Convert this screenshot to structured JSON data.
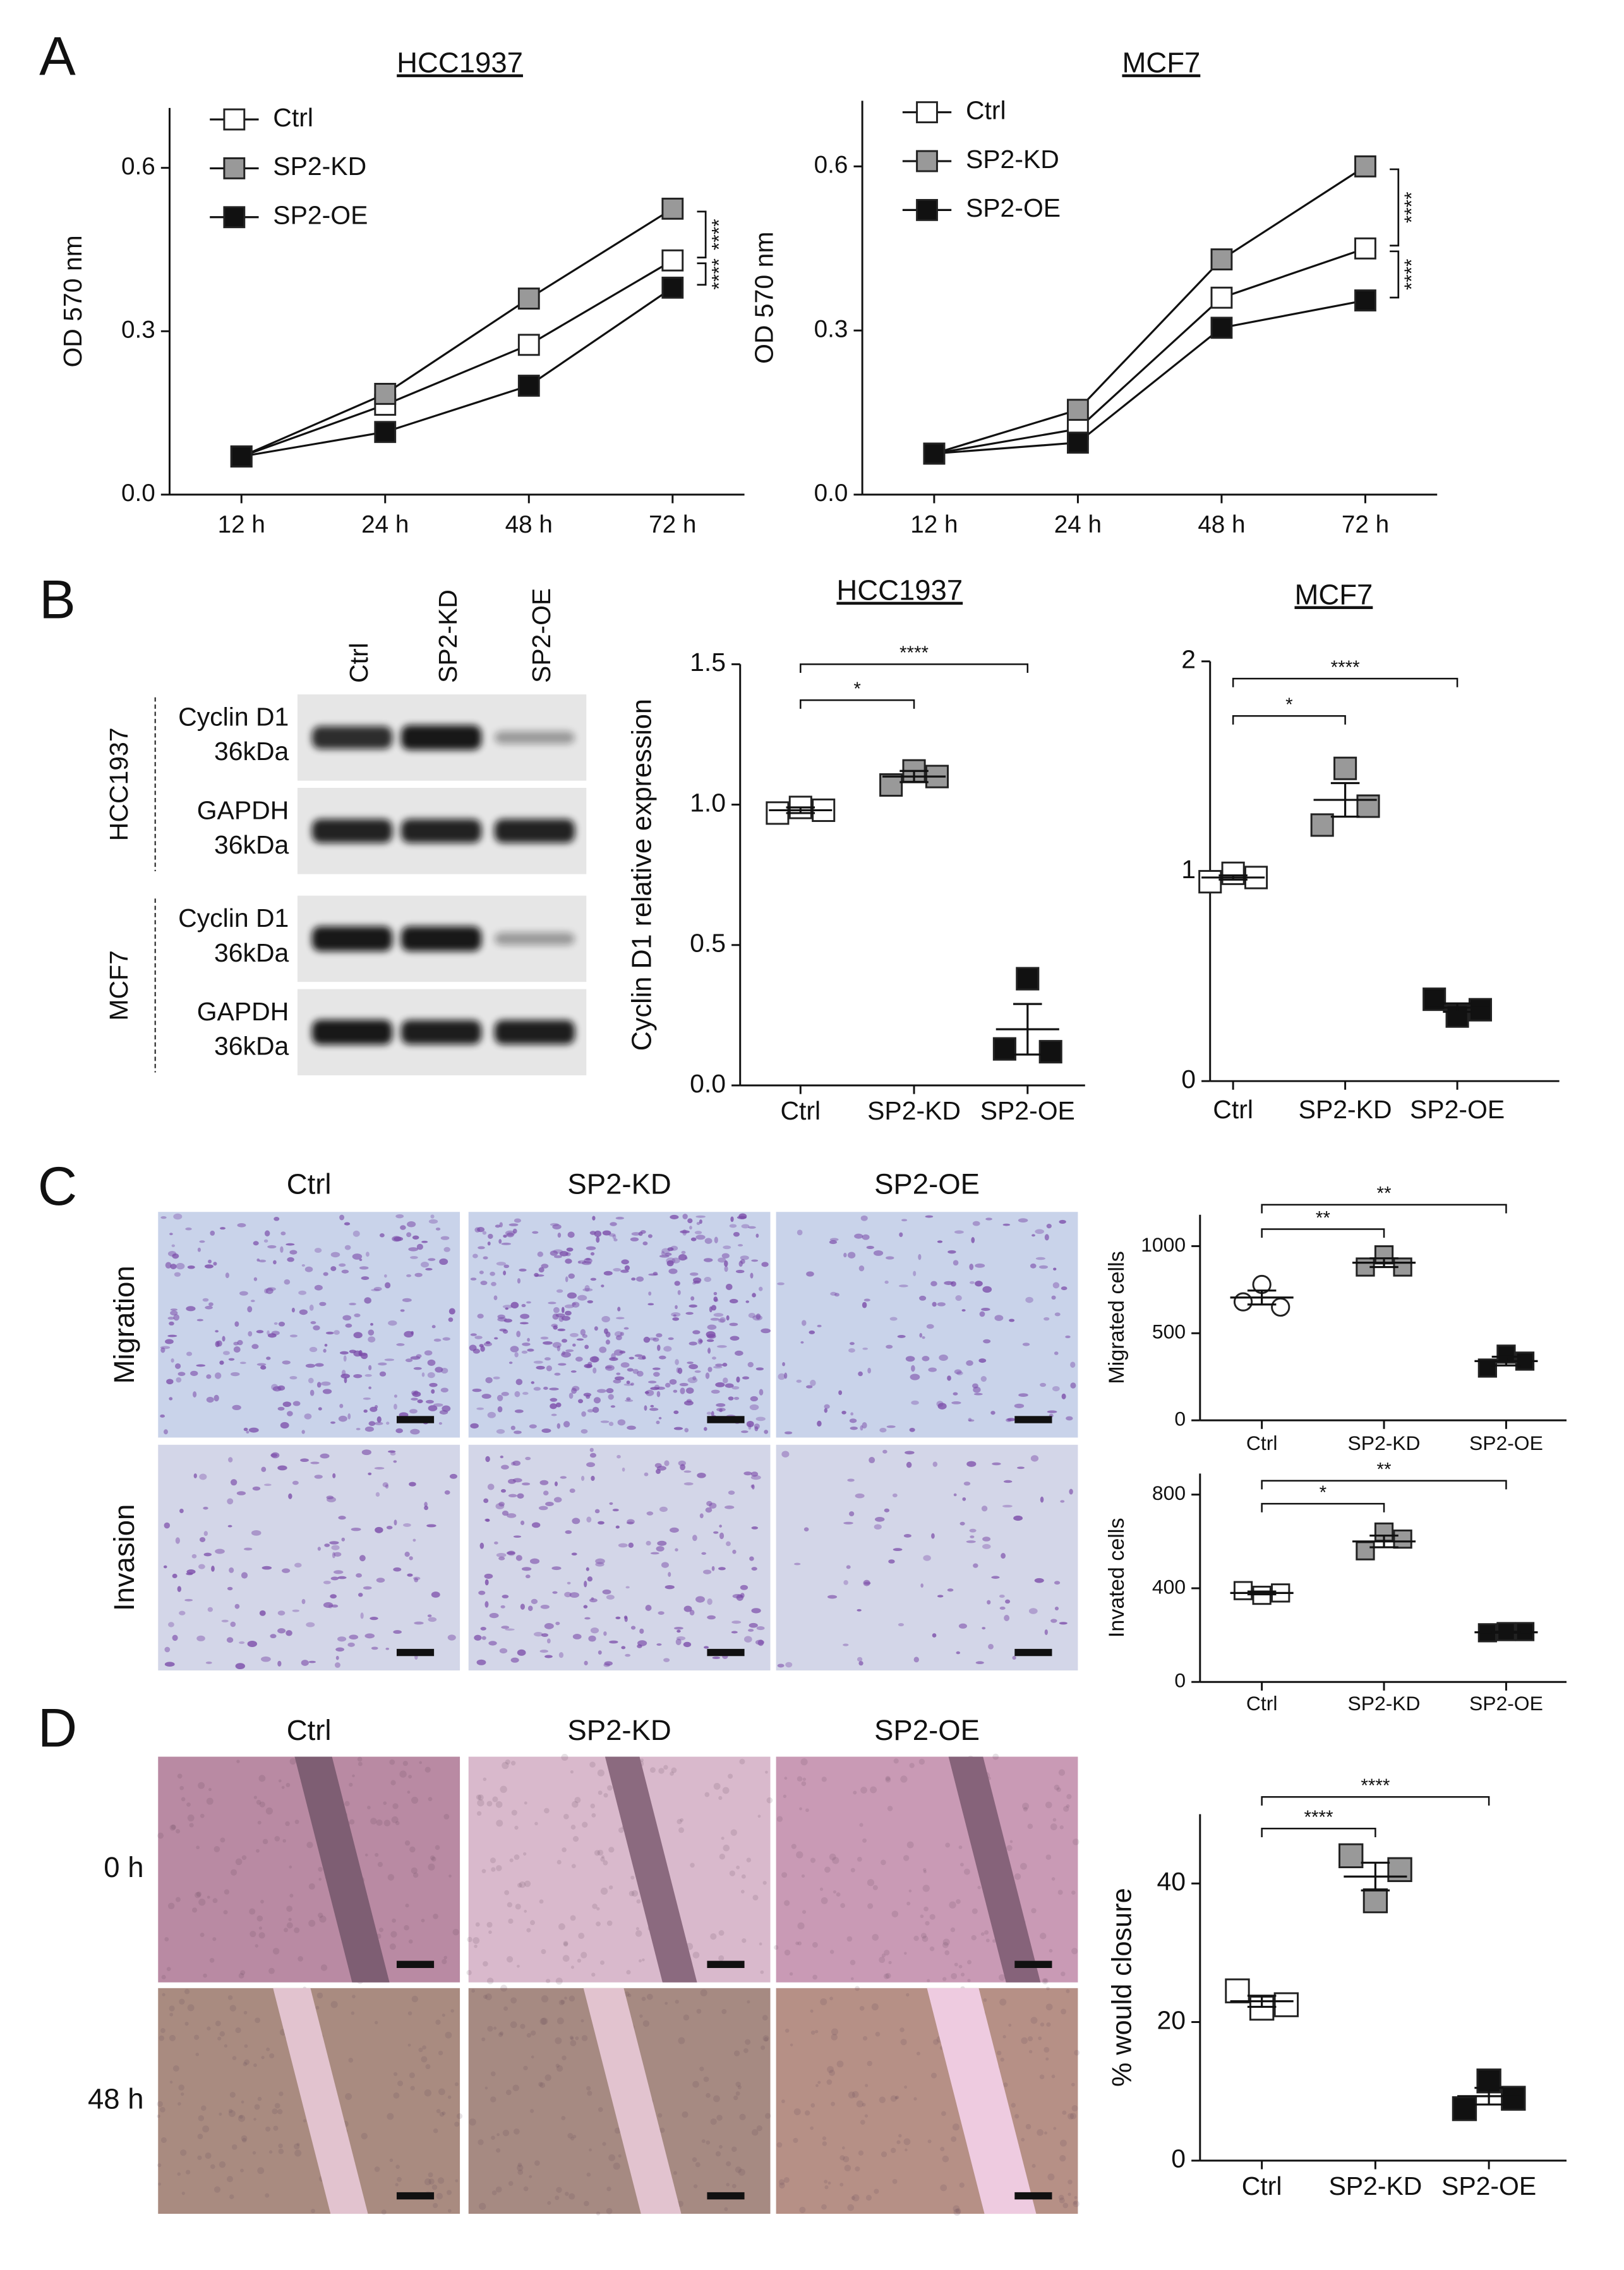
{
  "panel_labels": [
    "A",
    "B",
    "C",
    "D"
  ],
  "chart_data": [
    {
      "type": "line",
      "title": "HCC1937",
      "y_label": "OD 570 nm",
      "categories": [
        "12 h",
        "24 h",
        "48 h",
        "72 h"
      ],
      "series": [
        {
          "name": "Ctrl",
          "color": "#ffffff",
          "values": [
            0.07,
            0.165,
            0.275,
            0.43
          ]
        },
        {
          "name": "SP2-KD",
          "color": "#999999",
          "values": [
            0.07,
            0.185,
            0.36,
            0.525
          ]
        },
        {
          "name": "SP2-OE",
          "color": "#111111",
          "values": [
            0.07,
            0.115,
            0.2,
            0.38
          ]
        }
      ],
      "ylim": [
        0,
        0.71
      ],
      "yticks": [
        {
          "value": 0,
          "label": "0.0"
        },
        0.3,
        0.6
      ],
      "legend": "upper left",
      "annotations": [
        {
          "label": "****",
          "between": [
            1,
            0
          ]
        },
        {
          "label": "****",
          "between": [
            0,
            2
          ]
        }
      ]
    },
    {
      "type": "line",
      "title": "MCF7",
      "y_label": "OD 570 nm",
      "categories": [
        "12 h",
        "24 h",
        "48 h",
        "72 h"
      ],
      "series": [
        {
          "name": "Ctrl",
          "color": "#ffffff",
          "values": [
            0.075,
            0.12,
            0.36,
            0.45
          ]
        },
        {
          "name": "SP2-KD",
          "color": "#999999",
          "values": [
            0.075,
            0.155,
            0.43,
            0.6
          ]
        },
        {
          "name": "SP2-OE",
          "color": "#111111",
          "values": [
            0.075,
            0.095,
            0.305,
            0.355
          ]
        }
      ],
      "ylim": [
        0,
        0.72
      ],
      "yticks": [
        {
          "value": 0,
          "label": "0.0"
        },
        0.3,
        0.6
      ],
      "legend": "upper left",
      "annotations": [
        {
          "label": "****",
          "between": [
            1,
            0
          ]
        },
        {
          "label": "****",
          "between": [
            0,
            2
          ]
        }
      ]
    },
    {
      "type": "dot",
      "title": "HCC1937",
      "y_label": "Cyclin D1 relative expression",
      "categories": [
        "Ctrl",
        "SP2-KD",
        "SP2-OE"
      ],
      "colors": [
        "#ffffff",
        "#999999",
        "#111111"
      ],
      "markers": [
        "square",
        "square",
        "square"
      ],
      "points": [
        [
          0.97,
          0.99,
          0.98
        ],
        [
          1.07,
          1.12,
          1.1
        ],
        [
          0.13,
          0.38,
          0.12
        ]
      ],
      "means": [
        0.98,
        1.1,
        0.2
      ],
      "sem": [
        0.01,
        0.02,
        0.09
      ],
      "ylim": [
        0,
        1.5
      ],
      "yticks": [
        {
          "value": 0,
          "label": "0.0"
        },
        0.5,
        {
          "value": 1,
          "label": "1.0"
        },
        1.5
      ],
      "brackets": [
        {
          "span": [
            0,
            1
          ],
          "label": "*"
        },
        {
          "span": [
            0,
            2
          ],
          "label": "****"
        }
      ]
    },
    {
      "type": "dot",
      "title": "MCF7",
      "categories": [
        "Ctrl",
        "SP2-KD",
        "SP2-OE"
      ],
      "colors": [
        "#ffffff",
        "#999999",
        "#111111"
      ],
      "markers": [
        "square",
        "square",
        "square"
      ],
      "points": [
        [
          0.95,
          0.99,
          0.97
        ],
        [
          1.22,
          1.49,
          1.31
        ],
        [
          0.39,
          0.31,
          0.34
        ]
      ],
      "means": [
        0.97,
        1.34,
        0.35
      ],
      "sem": [
        0.01,
        0.08,
        0.02
      ],
      "ylim": [
        0,
        2
      ],
      "yticks": [
        0,
        1,
        2
      ],
      "brackets": [
        {
          "span": [
            0,
            1
          ],
          "label": "*"
        },
        {
          "span": [
            0,
            2
          ],
          "label": "****"
        }
      ]
    },
    {
      "type": "dot",
      "y_label": "Migrated cells",
      "categories": [
        "Ctrl",
        "SP2-KD",
        "SP2-OE"
      ],
      "colors": [
        "#ffffff",
        "#999999",
        "#111111"
      ],
      "markers": [
        "circle",
        "square",
        "square"
      ],
      "points": [
        [
          680,
          780,
          650
        ],
        [
          880,
          950,
          880
        ],
        [
          300,
          380,
          340
        ]
      ],
      "means": [
        705,
        905,
        340
      ],
      "sem": [
        40,
        25,
        25
      ],
      "ylim": [
        0,
        1180
      ],
      "yticks": [
        0,
        500,
        1000
      ],
      "brackets": [
        {
          "span": [
            0,
            1
          ],
          "label": "**"
        },
        {
          "span": [
            0,
            2
          ],
          "label": "**"
        }
      ]
    },
    {
      "type": "dot",
      "y_label": "Invated cells",
      "categories": [
        "Ctrl",
        "SP2-KD",
        "SP2-OE"
      ],
      "colors": [
        "#ffffff",
        "#999999",
        "#111111"
      ],
      "markers": [
        "square",
        "square",
        "square"
      ],
      "points": [
        [
          390,
          370,
          380
        ],
        [
          560,
          640,
          610
        ],
        [
          210,
          215,
          215
        ]
      ],
      "means": [
        380,
        600,
        212
      ],
      "sem": [
        6,
        25,
        2
      ],
      "ylim": [
        0,
        890
      ],
      "yticks": [
        0,
        400,
        800
      ],
      "brackets": [
        {
          "span": [
            0,
            1
          ],
          "label": "*"
        },
        {
          "span": [
            0,
            2
          ],
          "label": "**"
        }
      ]
    },
    {
      "type": "dot",
      "y_label": "% would closure",
      "categories": [
        "Ctrl",
        "SP2-KD",
        "SP2-OE"
      ],
      "colors": [
        "#ffffff",
        "#999999",
        "#111111"
      ],
      "markers": [
        "square",
        "square",
        "square"
      ],
      "points": [
        [
          24.5,
          22,
          22.5
        ],
        [
          44,
          37.5,
          42
        ],
        [
          7.5,
          11.5,
          9
        ]
      ],
      "means": [
        23,
        41,
        9.3
      ],
      "sem": [
        0.8,
        2,
        1.2
      ],
      "ylim": [
        0,
        50
      ],
      "yticks": [
        0,
        20,
        40
      ],
      "brackets": [
        {
          "span": [
            0,
            1
          ],
          "label": "****"
        },
        {
          "span": [
            0,
            2
          ],
          "label": "****"
        }
      ]
    }
  ],
  "blot": {
    "lanes": [
      "Ctrl",
      "SP2-KD",
      "SP2-OE"
    ],
    "cell_lines": [
      {
        "name": "HCC1937",
        "bands": [
          {
            "protein": "Cyclin D1",
            "size": "36kDa"
          },
          {
            "protein": "GAPDH",
            "size": "36kDa"
          }
        ]
      },
      {
        "name": "MCF7",
        "bands": [
          {
            "protein": "Cyclin D1",
            "size": "36kDa"
          },
          {
            "protein": "GAPDH",
            "size": "36kDa"
          }
        ]
      }
    ]
  },
  "migration_invasion": {
    "columns": [
      "Ctrl",
      "SP2-KD",
      "SP2-OE"
    ],
    "rows": [
      "Migration",
      "Invasion"
    ]
  },
  "wound_healing": {
    "columns": [
      "Ctrl",
      "SP2-KD",
      "SP2-OE"
    ],
    "rows": [
      "0 h",
      "48 h"
    ]
  }
}
